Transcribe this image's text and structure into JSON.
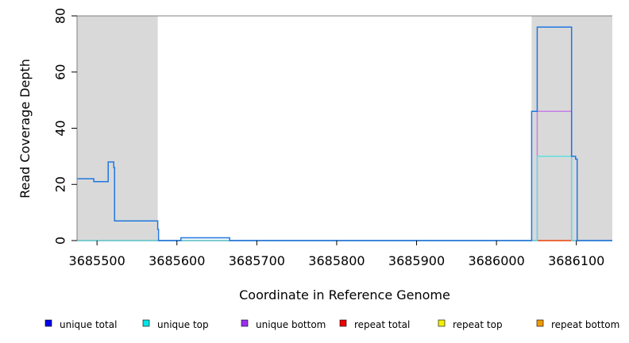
{
  "chart_data": {
    "type": "line",
    "xlabel": "Coordinate in Reference Genome",
    "ylabel": "Read Coverage Depth",
    "xlim": [
      3685475,
      3686145
    ],
    "ylim": [
      0,
      80
    ],
    "x_ticks": [
      3685500,
      3685600,
      3685700,
      3685800,
      3685900,
      3686000,
      3686100
    ],
    "x_tick_labels": [
      "3685500",
      "3685600",
      "3685700",
      "3685800",
      "3685900",
      "3686000",
      "3686100"
    ],
    "y_ticks": [
      0,
      20,
      40,
      60,
      80
    ],
    "y_tick_labels": [
      "0",
      "20",
      "40",
      "60",
      "80"
    ],
    "shaded_regions": [
      {
        "x_start": 3685475,
        "x_end": 3685576,
        "color": "#d9d9d9"
      },
      {
        "x_start": 3686044,
        "x_end": 3686145,
        "color": "#d9d9d9"
      }
    ],
    "legend_position": "bottom",
    "series": [
      {
        "name": "unique total",
        "color": "#1f77e0",
        "legend_color": "#0000ee",
        "points": [
          [
            3685475,
            22
          ],
          [
            3685496,
            22
          ],
          [
            3685496,
            21
          ],
          [
            3685514,
            21
          ],
          [
            3685514,
            28
          ],
          [
            3685521,
            28
          ],
          [
            3685521,
            26
          ],
          [
            3685522,
            26
          ],
          [
            3685522,
            7
          ],
          [
            3685576,
            7
          ],
          [
            3685576,
            4
          ],
          [
            3685577,
            4
          ],
          [
            3685577,
            0
          ],
          [
            3685605,
            0
          ],
          [
            3685605,
            1
          ],
          [
            3685666,
            1
          ],
          [
            3685666,
            0
          ],
          [
            3686044,
            0
          ],
          [
            3686044,
            46
          ],
          [
            3686051,
            46
          ],
          [
            3686051,
            76
          ],
          [
            3686094,
            76
          ],
          [
            3686094,
            30
          ],
          [
            3686099,
            30
          ],
          [
            3686099,
            29
          ],
          [
            3686101,
            29
          ],
          [
            3686101,
            0
          ],
          [
            3686145,
            0
          ]
        ]
      },
      {
        "name": "unique top",
        "color": "#5fe0e0",
        "legend_color": "#00e5e5",
        "points": [
          [
            3685475,
            0
          ],
          [
            3686051,
            0
          ],
          [
            3686051,
            30
          ],
          [
            3686094,
            30
          ],
          [
            3686094,
            0
          ],
          [
            3686145,
            0
          ]
        ]
      },
      {
        "name": "unique bottom",
        "color": "#c67fe6",
        "legend_color": "#9b30f0",
        "points": [
          [
            3685475,
            0
          ],
          [
            3686051,
            0
          ],
          [
            3686051,
            46
          ],
          [
            3686094,
            46
          ],
          [
            3686094,
            0
          ],
          [
            3686145,
            0
          ]
        ]
      },
      {
        "name": "repeat total",
        "color": "#e8463c",
        "legend_color": "#ee0000",
        "points": [
          [
            3685475,
            0
          ],
          [
            3686145,
            0
          ]
        ]
      },
      {
        "name": "repeat top",
        "color": "#f5e600",
        "legend_color": "#f0f000",
        "points": [
          [
            3685475,
            0
          ],
          [
            3686145,
            0
          ]
        ]
      },
      {
        "name": "repeat bottom",
        "color": "#f0a000",
        "legend_color": "#ee9a00",
        "points": [
          [
            3686051,
            0
          ],
          [
            3686094,
            0
          ]
        ]
      }
    ]
  }
}
